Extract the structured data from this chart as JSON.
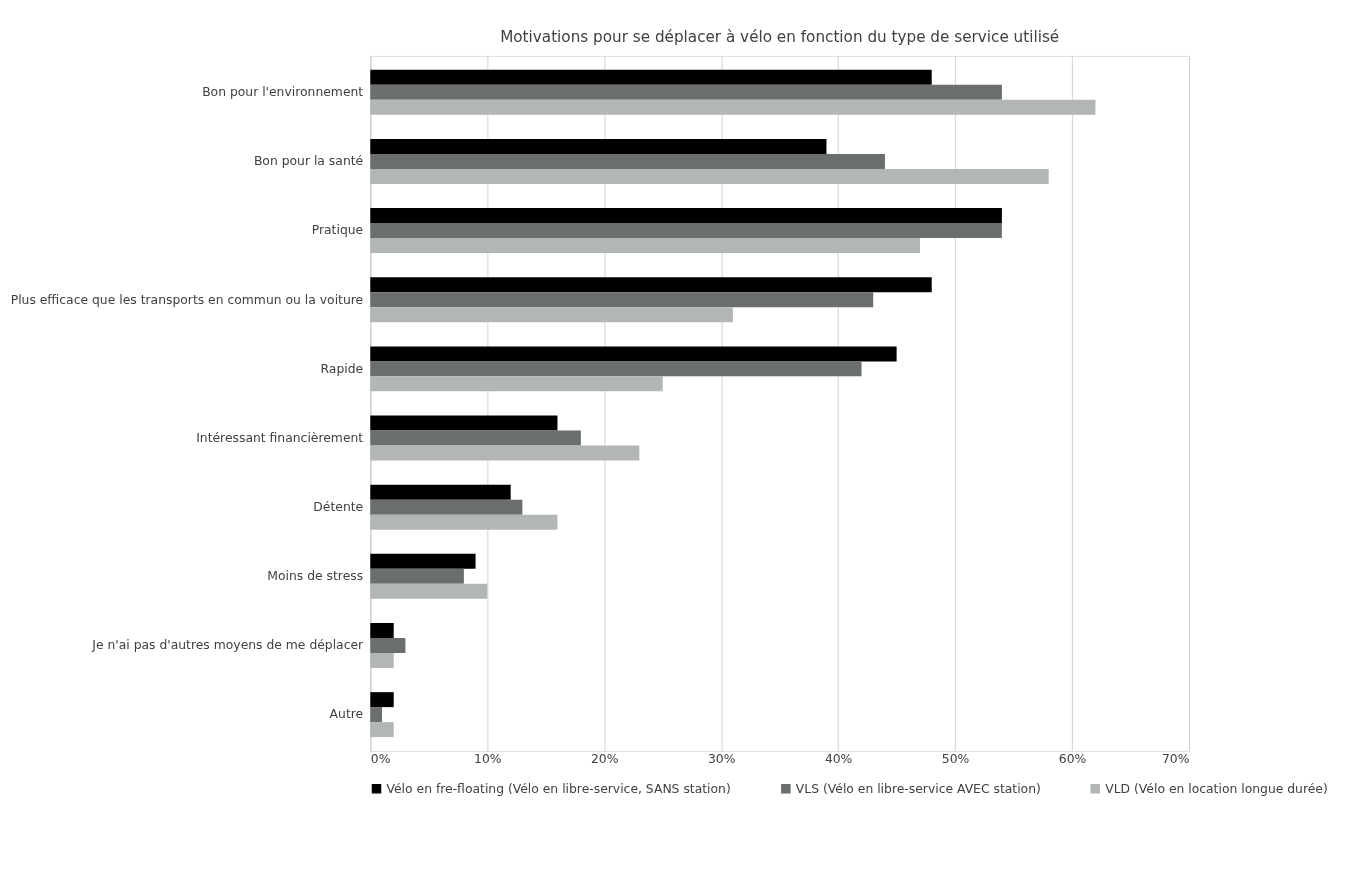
{
  "chart_data": {
    "type": "bar",
    "orientation": "horizontal",
    "title": "Motivations pour se déplacer à vélo en fonction du type de service utilisé",
    "categories": [
      "Bon pour l'environnement",
      "Bon pour la santé",
      "Pratique",
      "Plus efficace que les transports en commun ou la voiture",
      "Rapide",
      "Intéressant financièrement",
      "Détente",
      "Moins de stress",
      "Je n'ai pas d'autres moyens de me déplacer",
      "Autre"
    ],
    "series": [
      {
        "name": "Vélo en fre-floating (Vélo en libre-service, SANS station)",
        "color": "#000000",
        "values": [
          48,
          39,
          54,
          48,
          45,
          16,
          12,
          9,
          2,
          2
        ]
      },
      {
        "name": "VLS (Vélo en libre-service AVEC station)",
        "color": "#6b6e6e",
        "values": [
          54,
          44,
          54,
          43,
          42,
          18,
          13,
          8,
          3,
          1
        ]
      },
      {
        "name": "VLD (Vélo en location longue durée)",
        "color": "#b3b6b6",
        "values": [
          62,
          58,
          47,
          31,
          25,
          23,
          16,
          10,
          2,
          2
        ]
      }
    ],
    "xlim": [
      0,
      70
    ],
    "xticks": [
      {
        "value": 0,
        "label": "0%"
      },
      {
        "value": 10,
        "label": "10%"
      },
      {
        "value": 20,
        "label": "20%"
      },
      {
        "value": 30,
        "label": "30%"
      },
      {
        "value": 40,
        "label": "40%"
      },
      {
        "value": 50,
        "label": "50%"
      },
      {
        "value": 60,
        "label": "60%"
      },
      {
        "value": 70,
        "label": "70%"
      }
    ],
    "grid": "x",
    "legend": "bottom"
  }
}
